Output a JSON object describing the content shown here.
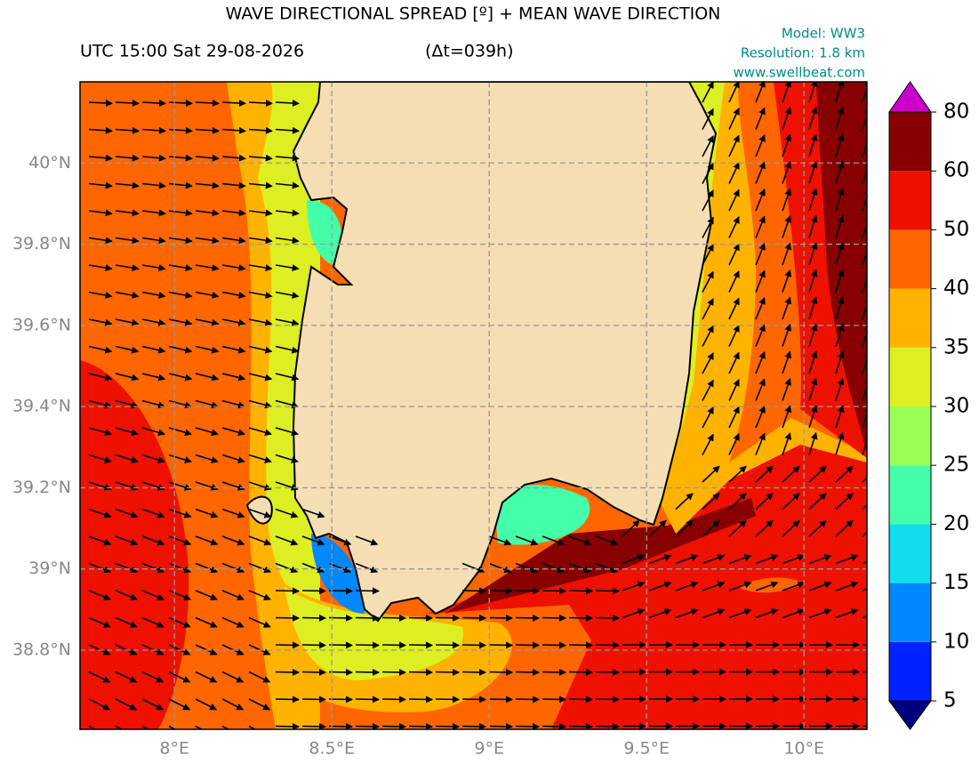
{
  "header": {
    "title": "WAVE DIRECTIONAL SPREAD [º] + MEAN WAVE DIRECTION",
    "time": "UTC 15:00 Sat 29-08-2026",
    "lead": "(Δt=039h)",
    "model": "Model: WW3",
    "resolution": "Resolution: 1.8 km",
    "site": "www.swellbeat.com"
  },
  "map": {
    "xlim": [
      7.7,
      10.2
    ],
    "ylim": [
      38.605,
      40.2
    ],
    "xticks": [
      {
        "value": 8,
        "label": "8°E"
      },
      {
        "value": 8.5,
        "label": "8.5°E"
      },
      {
        "value": 9,
        "label": "9°E"
      },
      {
        "value": 9.5,
        "label": "9.5°E"
      },
      {
        "value": 10,
        "label": "10°E"
      }
    ],
    "yticks": [
      {
        "value": 38.8,
        "label": "38.8°N"
      },
      {
        "value": 39,
        "label": "39°N"
      },
      {
        "value": 39.2,
        "label": "39.2°N"
      },
      {
        "value": 39.4,
        "label": "39.4°N"
      },
      {
        "value": 39.6,
        "label": "39.6°N"
      },
      {
        "value": 39.8,
        "label": "39.8°N"
      },
      {
        "value": 40,
        "label": "40°N"
      }
    ],
    "grid": true
  },
  "colorbar": {
    "levels": [
      5,
      10,
      15,
      20,
      25,
      30,
      35,
      40,
      50,
      60,
      80
    ],
    "colors": [
      "#0022ff",
      "#0088ff",
      "#11ddee",
      "#44ffaa",
      "#99ff55",
      "#ddee22",
      "#ffb300",
      "#ff6600",
      "#ee1100",
      "#880000"
    ],
    "under_color": "#00007f",
    "over_color": "#cc00cc"
  }
}
